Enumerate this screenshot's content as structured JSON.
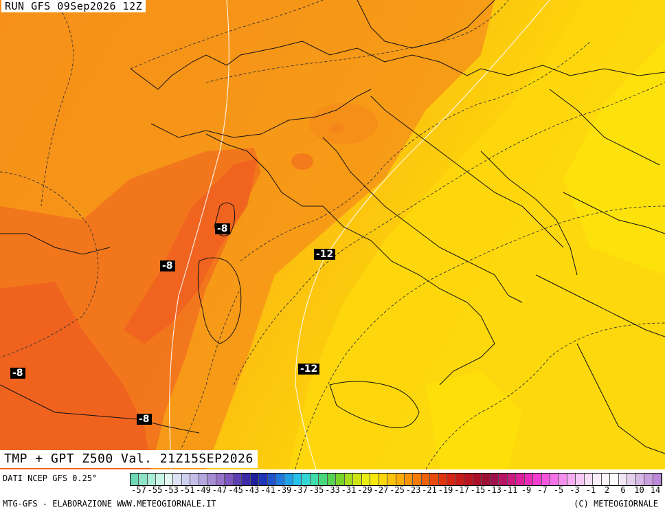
{
  "header": {
    "run_label": "RUN GFS 09Sep2026 12Z"
  },
  "footer": {
    "title": "TMP + GPT Z500 Val. 21Z15SEP2026",
    "source": "DATI NCEP GFS 0.25°",
    "credit_left": "MTG-GFS - ELABORAZIONE WWW.METEOGIORNALE.IT",
    "credit_right": "(C) METEOGIORNALE"
  },
  "contour_labels": [
    {
      "text": "-8"
    },
    {
      "text": "-8"
    },
    {
      "text": "-8"
    },
    {
      "text": "-8"
    },
    {
      "text": "-12"
    },
    {
      "text": "-12"
    }
  ],
  "legend": {
    "tick_labels": [
      "-57",
      "-55",
      "-53",
      "-51",
      "-49",
      "-47",
      "-45",
      "-43",
      "-41",
      "-39",
      "-37",
      "-35",
      "-33",
      "-31",
      "-29",
      "-27",
      "-25",
      "-23",
      "-21",
      "-19",
      "-17",
      "-15",
      "-13",
      "-11",
      "-9",
      "-7",
      "-5",
      "-3",
      "-1",
      "2",
      "6",
      "10",
      "14"
    ],
    "colors": [
      "#6fd9b3",
      "#8ee3c4",
      "#aaeed6",
      "#c8f5e6",
      "#e4f8f2",
      "#dde3f4",
      "#cdd0ef",
      "#c4bde8",
      "#b5a6de",
      "#a78dd4",
      "#9874c9",
      "#7e57be",
      "#5d3fb3",
      "#3d2ba6",
      "#1f1f9a",
      "#1f36b6",
      "#1f55cc",
      "#1f79dd",
      "#1f9fe6",
      "#25c1ea",
      "#34d6d4",
      "#3fdcab",
      "#48d77d",
      "#57d24f",
      "#7ad428",
      "#a8dd1b",
      "#cfe513",
      "#eaee10",
      "#f8e80d",
      "#fbd60b",
      "#fbc208",
      "#fbac06",
      "#f99305",
      "#f57a06",
      "#ef6107",
      "#e84b0a",
      "#df360e",
      "#d42613",
      "#c71b19",
      "#b9141f",
      "#aa1028",
      "#9d1035",
      "#a0114b",
      "#b61464",
      "#cc1a80",
      "#dd1f9c",
      "#ea2ab8",
      "#f23ed0",
      "#f457de",
      "#f573e8",
      "#f690ee",
      "#f7adf2",
      "#f8c9f5",
      "#fadff8",
      "#fbeefa",
      "#fdf7fd",
      "#fefcfe",
      "#f2e6f5",
      "#e4cfee",
      "#d7b8e6",
      "#c9a1df",
      "#bc8ad8"
    ]
  }
}
